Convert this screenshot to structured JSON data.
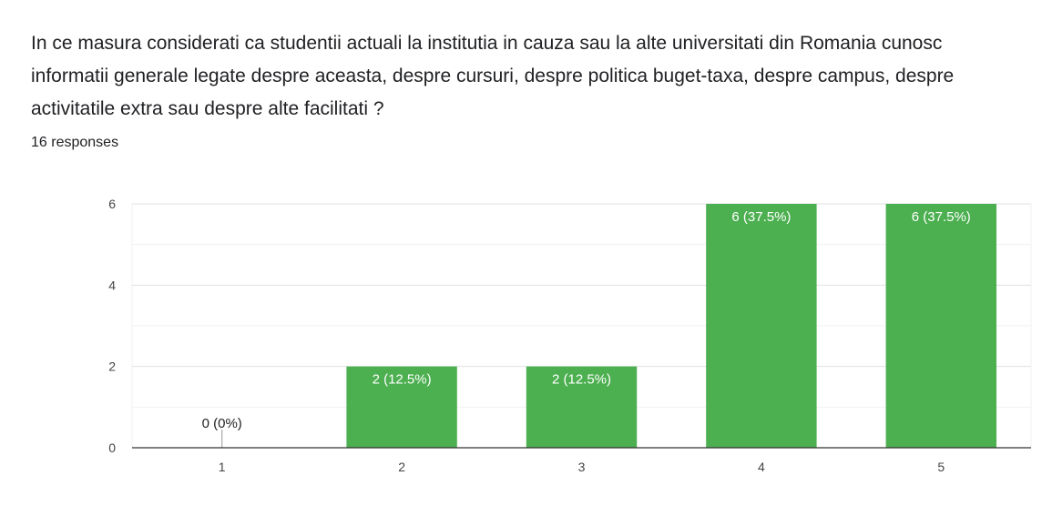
{
  "question": "In ce masura considerati ca studentii actuali la institutia in cauza sau la alte universitati din Romania cunosc informatii generale legate despre aceasta, despre cursuri, despre politica buget-taxa, despre campus, despre activitatile extra sau despre alte facilitati ?",
  "response_count": "16 responses",
  "colors": {
    "bar": "#4caf50",
    "grid": "#e0e0e0",
    "axis": "#333333"
  },
  "chart_data": {
    "type": "bar",
    "categories": [
      "1",
      "2",
      "3",
      "4",
      "5"
    ],
    "values": [
      0,
      2,
      2,
      6,
      6
    ],
    "data_labels": [
      "0 (0%)",
      "2 (12.5%)",
      "2 (12.5%)",
      "6 (37.5%)",
      "6 (37.5%)"
    ],
    "yticks": [
      0,
      2,
      4,
      6
    ],
    "ylim": [
      0,
      6
    ],
    "title": "",
    "xlabel": "",
    "ylabel": "",
    "grid": true
  }
}
